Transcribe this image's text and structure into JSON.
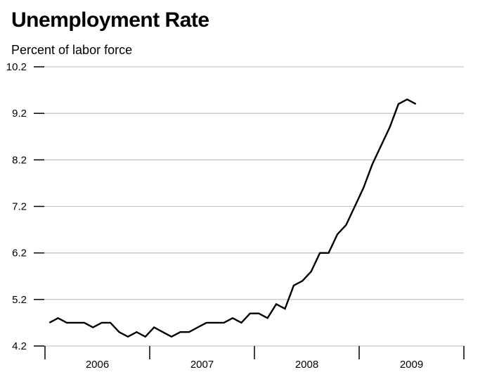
{
  "chart_data": {
    "type": "line",
    "title": "Unemployment Rate",
    "subtitle": "Percent of labor force",
    "xlabel": "",
    "ylabel": "",
    "ylim": [
      4.2,
      10.2
    ],
    "yticks": [
      "10.2",
      "9.2",
      "8.2",
      "7.2",
      "6.2",
      "5.2",
      "4.2"
    ],
    "xtick_labels": [
      "2006",
      "2007",
      "2008",
      "2009"
    ],
    "x_start": "2006-01",
    "x_frequency": "monthly",
    "grid": true,
    "line_color": "#000000",
    "grid_color": "#c8c8c8",
    "values": [
      4.7,
      4.8,
      4.7,
      4.7,
      4.7,
      4.6,
      4.7,
      4.7,
      4.5,
      4.4,
      4.5,
      4.4,
      4.6,
      4.5,
      4.4,
      4.5,
      4.5,
      4.6,
      4.7,
      4.7,
      4.7,
      4.8,
      4.7,
      4.9,
      4.9,
      4.8,
      5.1,
      5.0,
      5.5,
      5.6,
      5.8,
      6.2,
      6.2,
      6.6,
      6.8,
      7.2,
      7.6,
      8.1,
      8.5,
      8.9,
      9.4,
      9.5,
      9.4
    ]
  }
}
